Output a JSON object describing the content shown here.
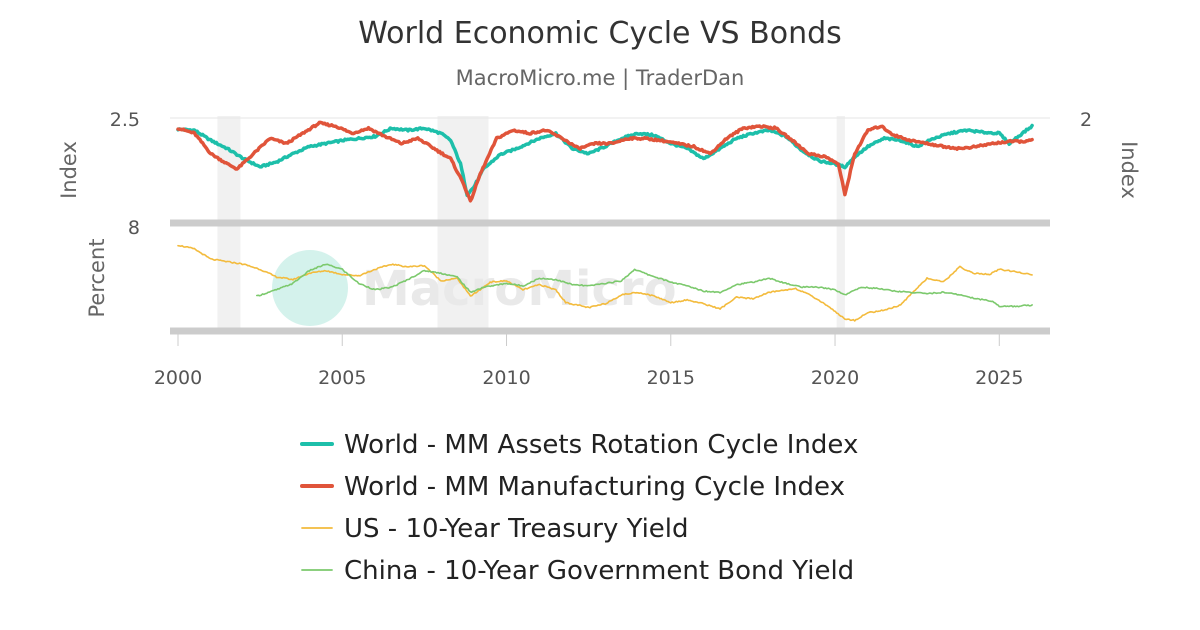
{
  "chart_data": {
    "type": "line",
    "title": "World Economic Cycle VS Bonds",
    "subtitle": "MacroMicro.me | TraderDan",
    "watermark": "MacroMicro",
    "x_axis": {
      "ticks": [
        "2000",
        "2005",
        "2010",
        "2015",
        "2020",
        "2025"
      ],
      "range": [
        2000,
        2026.3
      ]
    },
    "panels": [
      {
        "id": "top",
        "left_axis": {
          "label": "Index",
          "top_tick": "2.5"
        },
        "right_axis": {
          "label": "Index",
          "top_tick": "2"
        },
        "series": [
          {
            "name": "World - MM Assets Rotation Cycle Index",
            "color": "#1dbfaa",
            "points": [
              [
                2000.0,
                2.39
              ],
              [
                2000.5,
                2.38
              ],
              [
                2001.0,
                2.28
              ],
              [
                2001.5,
                2.2
              ],
              [
                2002.0,
                2.1
              ],
              [
                2002.5,
                2.02
              ],
              [
                2003.0,
                2.07
              ],
              [
                2003.5,
                2.15
              ],
              [
                2004.0,
                2.22
              ],
              [
                2004.5,
                2.25
              ],
              [
                2005.0,
                2.28
              ],
              [
                2005.5,
                2.3
              ],
              [
                2006.0,
                2.32
              ],
              [
                2006.5,
                2.4
              ],
              [
                2007.0,
                2.38
              ],
              [
                2007.5,
                2.4
              ],
              [
                2008.0,
                2.35
              ],
              [
                2008.3,
                2.28
              ],
              [
                2008.6,
                2.05
              ],
              [
                2008.8,
                1.75
              ],
              [
                2009.0,
                1.82
              ],
              [
                2009.3,
                2.0
              ],
              [
                2009.8,
                2.14
              ],
              [
                2010.3,
                2.2
              ],
              [
                2011.0,
                2.3
              ],
              [
                2011.5,
                2.35
              ],
              [
                2012.0,
                2.2
              ],
              [
                2012.5,
                2.15
              ],
              [
                2013.0,
                2.22
              ],
              [
                2013.5,
                2.3
              ],
              [
                2014.0,
                2.35
              ],
              [
                2014.5,
                2.33
              ],
              [
                2015.0,
                2.25
              ],
              [
                2015.5,
                2.2
              ],
              [
                2016.0,
                2.1
              ],
              [
                2016.5,
                2.2
              ],
              [
                2017.0,
                2.3
              ],
              [
                2017.5,
                2.35
              ],
              [
                2018.0,
                2.38
              ],
              [
                2018.5,
                2.32
              ],
              [
                2019.0,
                2.18
              ],
              [
                2019.5,
                2.08
              ],
              [
                2020.0,
                2.05
              ],
              [
                2020.3,
                2.02
              ],
              [
                2020.6,
                2.12
              ],
              [
                2021.0,
                2.22
              ],
              [
                2021.5,
                2.3
              ],
              [
                2022.0,
                2.28
              ],
              [
                2022.5,
                2.22
              ],
              [
                2023.0,
                2.3
              ],
              [
                2023.5,
                2.35
              ],
              [
                2024.0,
                2.38
              ],
              [
                2024.5,
                2.36
              ],
              [
                2025.0,
                2.35
              ],
              [
                2025.3,
                2.25
              ],
              [
                2025.7,
                2.35
              ],
              [
                2026.0,
                2.42
              ]
            ]
          },
          {
            "name": "World - MM Manufacturing Cycle Index",
            "color": "#e0543a",
            "points": [
              [
                2000.0,
                2.4
              ],
              [
                2000.5,
                2.35
              ],
              [
                2001.0,
                2.15
              ],
              [
                2001.5,
                2.05
              ],
              [
                2001.8,
                2.0
              ],
              [
                2002.3,
                2.15
              ],
              [
                2002.8,
                2.3
              ],
              [
                2003.3,
                2.25
              ],
              [
                2003.8,
                2.35
              ],
              [
                2004.3,
                2.45
              ],
              [
                2004.8,
                2.42
              ],
              [
                2005.3,
                2.35
              ],
              [
                2005.8,
                2.4
              ],
              [
                2006.3,
                2.32
              ],
              [
                2006.8,
                2.25
              ],
              [
                2007.3,
                2.3
              ],
              [
                2007.8,
                2.2
              ],
              [
                2008.3,
                2.1
              ],
              [
                2008.7,
                1.85
              ],
              [
                2008.9,
                1.68
              ],
              [
                2009.2,
                1.95
              ],
              [
                2009.7,
                2.3
              ],
              [
                2010.2,
                2.38
              ],
              [
                2010.7,
                2.35
              ],
              [
                2011.2,
                2.38
              ],
              [
                2011.7,
                2.3
              ],
              [
                2012.2,
                2.2
              ],
              [
                2012.7,
                2.25
              ],
              [
                2013.2,
                2.25
              ],
              [
                2013.7,
                2.3
              ],
              [
                2014.2,
                2.3
              ],
              [
                2014.7,
                2.28
              ],
              [
                2015.2,
                2.25
              ],
              [
                2015.7,
                2.22
              ],
              [
                2016.2,
                2.15
              ],
              [
                2016.7,
                2.3
              ],
              [
                2017.2,
                2.4
              ],
              [
                2017.7,
                2.42
              ],
              [
                2018.2,
                2.4
              ],
              [
                2018.7,
                2.28
              ],
              [
                2019.2,
                2.15
              ],
              [
                2019.7,
                2.12
              ],
              [
                2020.1,
                2.05
              ],
              [
                2020.3,
                1.75
              ],
              [
                2020.6,
                2.15
              ],
              [
                2021.0,
                2.38
              ],
              [
                2021.4,
                2.42
              ],
              [
                2021.8,
                2.33
              ],
              [
                2022.3,
                2.28
              ],
              [
                2022.8,
                2.25
              ],
              [
                2023.3,
                2.22
              ],
              [
                2023.8,
                2.2
              ],
              [
                2024.3,
                2.22
              ],
              [
                2024.8,
                2.25
              ],
              [
                2025.3,
                2.27
              ],
              [
                2025.7,
                2.27
              ],
              [
                2026.0,
                2.28
              ]
            ]
          }
        ]
      },
      {
        "id": "bottom",
        "left_axis": {
          "label": "Percent",
          "top_tick": "8"
        },
        "series": [
          {
            "name": "US - 10-Year Treasury Yield",
            "color": "#f3bb3d",
            "points": [
              [
                2000.0,
                6.5
              ],
              [
                2000.5,
                6.2
              ],
              [
                2001.0,
                5.4
              ],
              [
                2001.5,
                5.2
              ],
              [
                2002.0,
                5.0
              ],
              [
                2002.5,
                4.6
              ],
              [
                2003.0,
                4.0
              ],
              [
                2003.5,
                3.8
              ],
              [
                2004.0,
                4.3
              ],
              [
                2004.5,
                4.5
              ],
              [
                2005.0,
                4.2
              ],
              [
                2005.5,
                4.1
              ],
              [
                2006.0,
                4.6
              ],
              [
                2006.5,
                5.0
              ],
              [
                2007.0,
                4.8
              ],
              [
                2007.5,
                4.9
              ],
              [
                2008.0,
                3.7
              ],
              [
                2008.5,
                3.9
              ],
              [
                2008.9,
                2.5
              ],
              [
                2009.2,
                3.0
              ],
              [
                2009.5,
                3.6
              ],
              [
                2010.0,
                3.7
              ],
              [
                2010.5,
                3.0
              ],
              [
                2011.0,
                3.4
              ],
              [
                2011.5,
                3.0
              ],
              [
                2011.8,
                2.0
              ],
              [
                2012.5,
                1.6
              ],
              [
                2013.0,
                1.9
              ],
              [
                2013.5,
                2.6
              ],
              [
                2014.0,
                2.8
              ],
              [
                2014.5,
                2.5
              ],
              [
                2015.0,
                2.0
              ],
              [
                2015.5,
                2.2
              ],
              [
                2016.0,
                1.9
              ],
              [
                2016.5,
                1.5
              ],
              [
                2017.0,
                2.4
              ],
              [
                2017.5,
                2.3
              ],
              [
                2018.0,
                2.8
              ],
              [
                2018.8,
                3.1
              ],
              [
                2019.3,
                2.5
              ],
              [
                2019.8,
                1.7
              ],
              [
                2020.3,
                0.7
              ],
              [
                2020.6,
                0.6
              ],
              [
                2021.0,
                1.2
              ],
              [
                2021.5,
                1.4
              ],
              [
                2022.0,
                1.8
              ],
              [
                2022.4,
                2.9
              ],
              [
                2022.8,
                3.9
              ],
              [
                2023.3,
                3.6
              ],
              [
                2023.8,
                4.8
              ],
              [
                2024.2,
                4.3
              ],
              [
                2024.7,
                4.2
              ],
              [
                2025.0,
                4.6
              ],
              [
                2025.5,
                4.4
              ],
              [
                2026.0,
                4.2
              ]
            ]
          },
          {
            "name": "China - 10-Year Government Bond Yield",
            "color": "#7cc96d",
            "points": [
              [
                2002.4,
                2.5
              ],
              [
                2003.0,
                3.0
              ],
              [
                2003.5,
                3.5
              ],
              [
                2004.0,
                4.5
              ],
              [
                2004.5,
                5.0
              ],
              [
                2005.0,
                4.6
              ],
              [
                2005.5,
                3.5
              ],
              [
                2006.0,
                3.0
              ],
              [
                2006.5,
                3.2
              ],
              [
                2007.0,
                3.8
              ],
              [
                2007.5,
                4.5
              ],
              [
                2008.0,
                4.3
              ],
              [
                2008.5,
                4.0
              ],
              [
                2008.9,
                2.8
              ],
              [
                2009.3,
                3.2
              ],
              [
                2010.0,
                3.5
              ],
              [
                2010.5,
                3.3
              ],
              [
                2011.0,
                3.9
              ],
              [
                2011.5,
                3.8
              ],
              [
                2012.0,
                3.4
              ],
              [
                2012.5,
                3.3
              ],
              [
                2013.0,
                3.5
              ],
              [
                2013.5,
                3.7
              ],
              [
                2013.9,
                4.6
              ],
              [
                2014.3,
                4.2
              ],
              [
                2015.0,
                3.6
              ],
              [
                2015.5,
                3.3
              ],
              [
                2016.0,
                2.9
              ],
              [
                2016.5,
                2.8
              ],
              [
                2017.0,
                3.4
              ],
              [
                2017.5,
                3.6
              ],
              [
                2018.0,
                3.9
              ],
              [
                2018.5,
                3.5
              ],
              [
                2019.0,
                3.2
              ],
              [
                2019.5,
                3.2
              ],
              [
                2020.0,
                3.0
              ],
              [
                2020.3,
                2.6
              ],
              [
                2020.8,
                3.2
              ],
              [
                2021.3,
                3.1
              ],
              [
                2021.8,
                2.9
              ],
              [
                2022.3,
                2.8
              ],
              [
                2022.8,
                2.7
              ],
              [
                2023.3,
                2.8
              ],
              [
                2023.8,
                2.6
              ],
              [
                2024.3,
                2.3
              ],
              [
                2024.8,
                2.1
              ],
              [
                2025.0,
                1.7
              ],
              [
                2025.5,
                1.7
              ],
              [
                2026.0,
                1.8
              ]
            ]
          }
        ]
      }
    ],
    "recession_bands": [
      [
        2001.2,
        2001.9
      ],
      [
        2007.9,
        2009.45
      ],
      [
        2020.05,
        2020.3
      ]
    ],
    "legend": {
      "position": "bottom"
    }
  }
}
